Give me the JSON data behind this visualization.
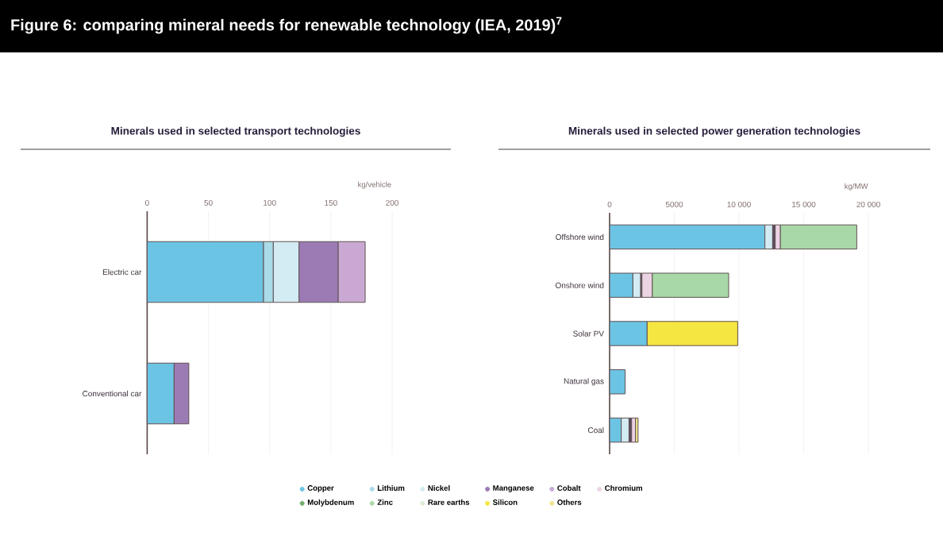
{
  "chart_data": [
    {
      "type": "bar",
      "orientation": "horizontal",
      "stacked": true,
      "title": "Figure 6: comparing mineral needs for renewable technology (IEA, 2019)$^{7}$",
      "subtitle": "Minerals used in selected transport technologies",
      "xlabel": "kg/vehicle",
      "categories": [
        "Electric car",
        "Conventional car"
      ],
      "xlim": [
        0,
        200
      ],
      "xticks": [
        0,
        50,
        100,
        150,
        200
      ],
      "grid": "x",
      "legend": "bottom",
      "series": [
        {
          "name": "Copper",
          "color": "#6cc4e4",
          "values": [
            95,
            22
          ]
        },
        {
          "name": "Lithium",
          "color": "#a9dbe8",
          "values": [
            8,
            null
          ]
        },
        {
          "name": "Nickel",
          "color": "#d3ebf3",
          "values": [
            21,
            null
          ]
        },
        {
          "name": "Manganese",
          "color": "#9c7bb4",
          "values": [
            32,
            12
          ]
        },
        {
          "name": "Cobalt",
          "color": "#c9a9d3",
          "values": [
            22,
            null
          ]
        },
        {
          "name": "Chromium",
          "color": "#ecd3e3",
          "values": [
            null,
            null
          ]
        },
        {
          "name": "Molybdenum",
          "color": "#6fae6a",
          "values": [
            null,
            null
          ]
        },
        {
          "name": "Zinc",
          "color": "#a8d8a8",
          "values": [
            null,
            null
          ]
        },
        {
          "name": "Rare earths",
          "color": "#dfecd5",
          "values": [
            null,
            null
          ]
        },
        {
          "name": "Silicon",
          "color": "#f5e642",
          "values": [
            null,
            null
          ]
        },
        {
          "name": "Others",
          "color": "#efe38a",
          "values": [
            null,
            null
          ]
        }
      ]
    },
    {
      "type": "bar",
      "orientation": "horizontal",
      "stacked": true,
      "title": "Minerals used in selected power generation technologies",
      "xlabel": "kg/MW",
      "categories": [
        "Offshore wind",
        "Onshore wind",
        "Solar PV",
        "Natural gas",
        "Coal"
      ],
      "xlim": [
        0,
        20000
      ],
      "xticks": [
        0,
        5000,
        {
          "value": 10000,
          "label": "10 000"
        },
        {
          "value": 15000,
          "label": "15 000"
        },
        {
          "value": 20000,
          "label": "20 000"
        }
      ],
      "grid": "x",
      "series": [
        {
          "color": "#6cc4e4",
          "values": [
            12000,
            1800,
            2900,
            1200,
            900
          ]
        },
        {
          "color": "#d3ebf3",
          "values": [
            600,
            600,
            null,
            null,
            600
          ]
        },
        {
          "color": "#5c4a5e",
          "values": [
            200,
            100,
            null,
            null,
            200
          ]
        },
        {
          "color": "#ecd3e3",
          "values": [
            400,
            800,
            null,
            null,
            300
          ]
        },
        {
          "color": "#a8d8a8",
          "values": [
            5900,
            5900,
            null,
            null,
            null
          ]
        },
        {
          "color": "#f5e642",
          "values": [
            null,
            null,
            7000,
            null,
            null
          ]
        },
        {
          "color": "#efe38a",
          "values": [
            null,
            null,
            null,
            null,
            200
          ]
        }
      ]
    }
  ]
}
